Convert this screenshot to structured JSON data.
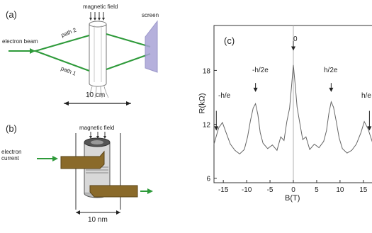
{
  "panel_a": {
    "label": "(a)",
    "magnetic_field": "magnetic field",
    "screen": "screen",
    "electron_beam": "electron beam",
    "path2": "path 2",
    "path1": "path 1",
    "scale": "10 cm"
  },
  "panel_b": {
    "label": "(b)",
    "magnetic_field": "magnetic field",
    "electron_current_line1": "electron",
    "electron_current_line2": "current",
    "scale": "10 nm"
  },
  "panel_c": {
    "label": "(c)",
    "annotations": [
      "-h/e",
      "-h/2e",
      "0",
      "h/2e",
      "h/e"
    ]
  },
  "colors": {
    "path": "#2e9a3a",
    "screen": "#a9a3d6",
    "contact": "#8a6a2a"
  },
  "chart_data": {
    "type": "line",
    "xlabel": "B(T)",
    "ylabel": "R(kΩ)",
    "xlim": [
      -17,
      17
    ],
    "ylim": [
      5.5,
      23
    ],
    "xticks": [
      -15,
      -10,
      -5,
      0,
      5,
      10,
      15
    ],
    "yticks": [
      6,
      12,
      18
    ],
    "x": [
      -17,
      -16,
      -15.2,
      -14.5,
      -13.5,
      -12.5,
      -11.5,
      -10.5,
      -9.8,
      -9.2,
      -8.6,
      -8.1,
      -7.6,
      -7.1,
      -6.5,
      -5.5,
      -4.5,
      -3.5,
      -2.7,
      -2,
      -1.4,
      -0.8,
      -0.4,
      0,
      0.4,
      0.8,
      1.4,
      2,
      2.7,
      3.5,
      4.5,
      5.5,
      6.5,
      7.1,
      7.6,
      8.1,
      8.6,
      9.2,
      9.8,
      10.5,
      11.5,
      12.5,
      13.5,
      14.5,
      15.2,
      16,
      17
    ],
    "y": [
      9.8,
      11.6,
      12.2,
      11.2,
      9.8,
      9.1,
      8.7,
      9.2,
      10.6,
      12.4,
      13.8,
      14.3,
      13.1,
      11.1,
      9.9,
      9.3,
      9.7,
      9.1,
      10.6,
      10.2,
      12.3,
      13.8,
      16.2,
      18.6,
      16.4,
      13.9,
      12.1,
      10.3,
      10.6,
      9.2,
      9.8,
      9.4,
      10.1,
      11.3,
      13.2,
      14.5,
      13.9,
      12.3,
      10.5,
      9.3,
      8.8,
      9.1,
      9.8,
      11.1,
      12.3,
      11.5,
      9.9
    ]
  }
}
